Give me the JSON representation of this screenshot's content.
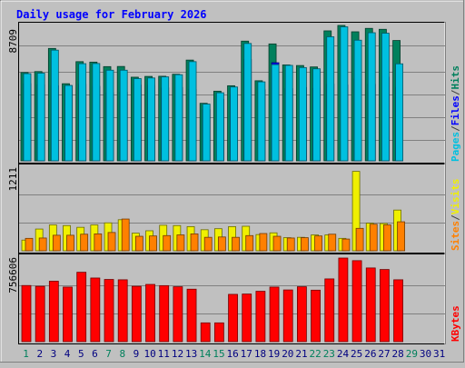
{
  "chart_data": [
    {
      "type": "bar",
      "title": "Daily usage for February 2026",
      "categories": [
        "1",
        "2",
        "3",
        "4",
        "5",
        "6",
        "7",
        "8",
        "9",
        "10",
        "11",
        "12",
        "13",
        "14",
        "15",
        "16",
        "17",
        "18",
        "19",
        "20",
        "21",
        "22",
        "23",
        "24",
        "25",
        "26",
        "27",
        "28",
        "29",
        "30",
        "31"
      ],
      "category_colors": [
        "#00805c",
        "#000080",
        "#000080",
        "#000080",
        "#000080",
        "#000080",
        "#00805c",
        "#00805c",
        "#000080",
        "#000080",
        "#000080",
        "#000080",
        "#000080",
        "#00805c",
        "#00805c",
        "#000080",
        "#000080",
        "#000080",
        "#000080",
        "#000080",
        "#000080",
        "#00805c",
        "#00805c",
        "#000080",
        "#000080",
        "#000080",
        "#000080",
        "#000080",
        "#00805c",
        "#000080",
        "#000080"
      ],
      "ymax_label": "8709",
      "ylim": [
        0,
        8709
      ],
      "legend_text": [
        "Pages",
        "/",
        "Files",
        "/",
        "Hits"
      ],
      "legend_colors": [
        "#00c0e0",
        "#404040",
        "#0000ff",
        "#404040",
        "#00805c"
      ],
      "series": [
        {
          "name": "Hits",
          "color": "#00805c",
          "values": [
            5680,
            5740,
            7230,
            4960,
            6380,
            6350,
            6060,
            6070,
            5380,
            5430,
            5440,
            5570,
            6480,
            3700,
            4480,
            4830,
            7700,
            5150,
            7520,
            6170,
            6130,
            6040,
            8360,
            8709,
            8300,
            8520,
            8460,
            7740,
            null,
            null,
            null
          ]
        },
        {
          "name": "Files",
          "color": "#0000ff",
          "values": [
            4960,
            4890,
            4830,
            4830,
            4920,
            4790,
            4380,
            4410,
            4870,
            4860,
            4690,
            4720,
            4600,
            3300,
            3950,
            4270,
            6520,
            4580,
            6310,
            4650,
            4720,
            4660,
            4930,
            4880,
            5270,
            4920,
            5380,
            4730,
            null,
            null,
            null
          ]
        },
        {
          "name": "Pages",
          "color": "#00c0e0",
          "values": [
            5610,
            5640,
            7120,
            4850,
            6250,
            6260,
            5830,
            5830,
            5290,
            5330,
            5400,
            5540,
            6380,
            3650,
            4380,
            4750,
            7550,
            5080,
            6190,
            6140,
            6000,
            5920,
            7980,
            8620,
            7760,
            8240,
            8210,
            6240,
            null,
            null,
            null
          ]
        }
      ]
    },
    {
      "type": "bar",
      "ymax_label": "1211",
      "ylim": [
        0,
        1211
      ],
      "legend_text": [
        "Sites",
        "/",
        "Visits"
      ],
      "legend_colors": [
        "#ff8000",
        "#404040",
        "#f0f000"
      ],
      "series": [
        {
          "name": "Visits",
          "color": "#f0f000",
          "values": [
            155,
            315,
            375,
            365,
            340,
            375,
            405,
            450,
            255,
            290,
            370,
            365,
            350,
            305,
            320,
            350,
            355,
            235,
            260,
            190,
            195,
            230,
            230,
            180,
            1150,
            400,
            395,
            590,
            null,
            null,
            null
          ]
        },
        {
          "name": "Sites",
          "color": "#ff8000",
          "values": [
            180,
            185,
            225,
            225,
            240,
            245,
            265,
            460,
            210,
            215,
            220,
            230,
            245,
            195,
            200,
            195,
            220,
            250,
            210,
            185,
            190,
            215,
            240,
            170,
            325,
            385,
            375,
            420,
            null,
            null,
            null
          ]
        }
      ]
    },
    {
      "type": "bar",
      "ymax_label": "756606",
      "ylim": [
        0,
        756606
      ],
      "legend_text": [
        "KBytes"
      ],
      "legend_colors": [
        "#ff0000"
      ],
      "series": [
        {
          "name": "KBytes",
          "color": "#ff0000",
          "values": [
            508000,
            501000,
            547000,
            494000,
            628000,
            576000,
            563000,
            560000,
            501000,
            518000,
            507000,
            497000,
            475000,
            170000,
            170000,
            428000,
            431000,
            456000,
            494000,
            468000,
            497000,
            466000,
            568000,
            756606,
            733000,
            667000,
            653000,
            560000,
            null,
            null,
            null
          ]
        }
      ]
    }
  ]
}
